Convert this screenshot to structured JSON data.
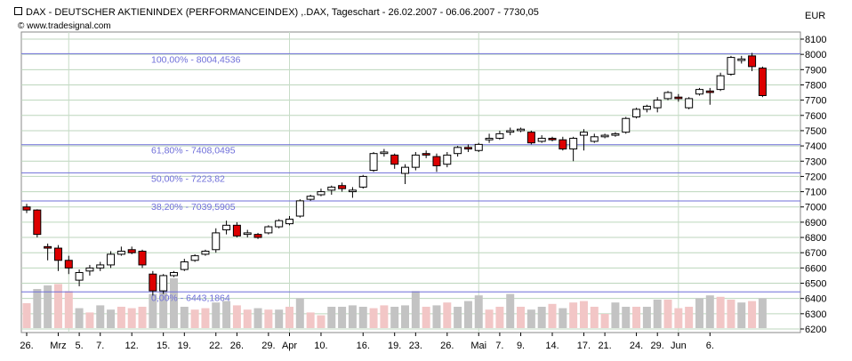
{
  "header": {
    "title": "DAX - DEUTSCHER AKTIENINDEX (PERFORMANCEINDEX) ,.DAX, Tageschart - 26.02.2007 - 06.06.2007 - 7730,05",
    "copyright": "© www.tradesignal.com",
    "currency": "EUR"
  },
  "colors": {
    "up_fill": "#ffffff",
    "down_fill": "#dd0000",
    "up_volume": "#c3c3c3",
    "down_volume": "#f2c6c6",
    "fib_line": "#6f6fd9",
    "fib_text": "#6f6fd9",
    "grid_h": "#bcd6bc",
    "grid_v": "#c8dcc8"
  },
  "chart_data": {
    "type": "candlestick",
    "title": "DAX - DEUTSCHER AKTIENINDEX (PERFORMANCEINDEX) ,.DAX, Tageschart - 26.02.2007 - 06.06.2007 - 7730,05",
    "ylim": [
      6150,
      8200
    ],
    "yticks": [
      6200,
      6300,
      6400,
      6500,
      6600,
      6700,
      6800,
      6900,
      7000,
      7100,
      7200,
      7300,
      7400,
      7500,
      7600,
      7700,
      7800,
      7900,
      8000,
      8100
    ],
    "x_labels": [
      {
        "bar": 0,
        "label": "26."
      },
      {
        "bar": 3,
        "label": "Mrz"
      },
      {
        "bar": 5,
        "label": "5."
      },
      {
        "bar": 7,
        "label": "7."
      },
      {
        "bar": 10,
        "label": "12."
      },
      {
        "bar": 13,
        "label": "15."
      },
      {
        "bar": 15,
        "label": "19."
      },
      {
        "bar": 18,
        "label": "22."
      },
      {
        "bar": 20,
        "label": "26."
      },
      {
        "bar": 23,
        "label": "29."
      },
      {
        "bar": 25,
        "label": "Apr"
      },
      {
        "bar": 28,
        "label": "10."
      },
      {
        "bar": 32,
        "label": "16."
      },
      {
        "bar": 35,
        "label": "19."
      },
      {
        "bar": 37,
        "label": "23."
      },
      {
        "bar": 40,
        "label": "26."
      },
      {
        "bar": 43,
        "label": "Mai"
      },
      {
        "bar": 45,
        "label": "7."
      },
      {
        "bar": 47,
        "label": "9."
      },
      {
        "bar": 50,
        "label": "14."
      },
      {
        "bar": 53,
        "label": "17."
      },
      {
        "bar": 55,
        "label": "21."
      },
      {
        "bar": 58,
        "label": "24."
      },
      {
        "bar": 60,
        "label": "29."
      },
      {
        "bar": 62,
        "label": "Jun"
      },
      {
        "bar": 65,
        "label": "6."
      }
    ],
    "v_grid_bars": [
      4,
      25,
      43,
      62
    ],
    "fib_levels": [
      {
        "label": "100,00% - 8004,4536",
        "value": 8004.4536
      },
      {
        "label": "61,80% - 7408,0495",
        "value": 7408.0495
      },
      {
        "label": "50,00% - 7223,82",
        "value": 7223.82
      },
      {
        "label": "38,20% - 7039,5905",
        "value": 7039.5905
      },
      {
        "label": "0,00% - 6443,1864",
        "value": 6443.1864
      }
    ],
    "ohlc": [
      [
        7000,
        7020,
        6960,
        6980
      ],
      [
        6980,
        6985,
        6800,
        6820
      ],
      [
        6740,
        6760,
        6650,
        6730
      ],
      [
        6730,
        6750,
        6580,
        6650
      ],
      [
        6650,
        6680,
        6560,
        6600
      ],
      [
        6520,
        6590,
        6480,
        6570
      ],
      [
        6580,
        6620,
        6550,
        6600
      ],
      [
        6600,
        6640,
        6580,
        6620
      ],
      [
        6620,
        6710,
        6600,
        6690
      ],
      [
        6690,
        6740,
        6680,
        6710
      ],
      [
        6720,
        6740,
        6690,
        6700
      ],
      [
        6710,
        6720,
        6600,
        6620
      ],
      [
        6560,
        6580,
        6420,
        6450
      ],
      [
        6450,
        6560,
        6430,
        6550
      ],
      [
        6550,
        6580,
        6540,
        6570
      ],
      [
        6590,
        6660,
        6580,
        6640
      ],
      [
        6650,
        6690,
        6640,
        6680
      ],
      [
        6690,
        6720,
        6680,
        6710
      ],
      [
        6720,
        6860,
        6700,
        6830
      ],
      [
        6850,
        6910,
        6820,
        6880
      ],
      [
        6880,
        6900,
        6800,
        6810
      ],
      [
        6820,
        6850,
        6800,
        6830
      ],
      [
        6820,
        6830,
        6790,
        6800
      ],
      [
        6830,
        6880,
        6820,
        6870
      ],
      [
        6870,
        6920,
        6860,
        6910
      ],
      [
        6890,
        6940,
        6880,
        6920
      ],
      [
        6940,
        7050,
        6930,
        7040
      ],
      [
        7050,
        7080,
        7040,
        7070
      ],
      [
        7080,
        7120,
        7070,
        7100
      ],
      [
        7110,
        7140,
        7080,
        7130
      ],
      [
        7140,
        7160,
        7100,
        7120
      ],
      [
        7100,
        7130,
        7060,
        7110
      ],
      [
        7130,
        7210,
        7120,
        7200
      ],
      [
        7240,
        7360,
        7230,
        7350
      ],
      [
        7350,
        7380,
        7330,
        7360
      ],
      [
        7340,
        7350,
        7250,
        7280
      ],
      [
        7220,
        7280,
        7150,
        7260
      ],
      [
        7260,
        7360,
        7240,
        7340
      ],
      [
        7350,
        7370,
        7320,
        7340
      ],
      [
        7330,
        7350,
        7230,
        7270
      ],
      [
        7280,
        7360,
        7260,
        7340
      ],
      [
        7350,
        7400,
        7330,
        7390
      ],
      [
        7390,
        7410,
        7360,
        7380
      ],
      [
        7370,
        7420,
        7360,
        7410
      ],
      [
        7440,
        7480,
        7420,
        7450
      ],
      [
        7450,
        7500,
        7440,
        7480
      ],
      [
        7490,
        7520,
        7470,
        7500
      ],
      [
        7500,
        7520,
        7490,
        7510
      ],
      [
        7490,
        7500,
        7410,
        7420
      ],
      [
        7430,
        7470,
        7420,
        7450
      ],
      [
        7450,
        7460,
        7430,
        7440
      ],
      [
        7440,
        7460,
        7370,
        7380
      ],
      [
        7380,
        7460,
        7300,
        7450
      ],
      [
        7470,
        7510,
        7370,
        7490
      ],
      [
        7430,
        7480,
        7420,
        7460
      ],
      [
        7460,
        7480,
        7450,
        7470
      ],
      [
        7470,
        7490,
        7460,
        7480
      ],
      [
        7490,
        7590,
        7480,
        7580
      ],
      [
        7590,
        7650,
        7580,
        7640
      ],
      [
        7640,
        7670,
        7620,
        7660
      ],
      [
        7650,
        7720,
        7620,
        7700
      ],
      [
        7710,
        7760,
        7700,
        7750
      ],
      [
        7720,
        7740,
        7690,
        7710
      ],
      [
        7650,
        7720,
        7640,
        7710
      ],
      [
        7740,
        7780,
        7730,
        7770
      ],
      [
        7760,
        7780,
        7670,
        7750
      ],
      [
        7770,
        7880,
        7760,
        7860
      ],
      [
        7870,
        7990,
        7860,
        7980
      ],
      [
        7960,
        7990,
        7940,
        7970
      ],
      [
        7990,
        8010,
        7890,
        7920
      ],
      [
        7910,
        7920,
        7720,
        7730
      ]
    ],
    "volume_bars": [
      [
        0,
        "down",
        0.35
      ],
      [
        1,
        "up",
        0.55
      ],
      [
        2,
        "up",
        0.6
      ],
      [
        3,
        "down",
        0.62
      ],
      [
        4,
        "down",
        0.52
      ],
      [
        5,
        "up",
        0.28
      ],
      [
        6,
        "down",
        0.22
      ],
      [
        7,
        "up",
        0.32
      ],
      [
        8,
        "up",
        0.26
      ],
      [
        9,
        "down",
        0.3
      ],
      [
        10,
        "down",
        0.28
      ],
      [
        11,
        "down",
        0.3
      ],
      [
        12,
        "up",
        0.48
      ],
      [
        13,
        "up",
        0.62
      ],
      [
        14,
        "up",
        0.7
      ],
      [
        15,
        "up",
        0.3
      ],
      [
        16,
        "down",
        0.26
      ],
      [
        17,
        "down",
        0.28
      ],
      [
        18,
        "up",
        0.36
      ],
      [
        19,
        "up",
        0.38
      ],
      [
        20,
        "down",
        0.32
      ],
      [
        21,
        "down",
        0.26
      ],
      [
        22,
        "up",
        0.28
      ],
      [
        23,
        "down",
        0.26
      ],
      [
        24,
        "up",
        0.26
      ],
      [
        25,
        "down",
        0.3
      ],
      [
        26,
        "up",
        0.42
      ],
      [
        27,
        "down",
        0.22
      ],
      [
        28,
        "down",
        0.18
      ],
      [
        29,
        "up",
        0.3
      ],
      [
        30,
        "up",
        0.3
      ],
      [
        31,
        "up",
        0.32
      ],
      [
        32,
        "up",
        0.3
      ],
      [
        33,
        "down",
        0.28
      ],
      [
        34,
        "down",
        0.32
      ],
      [
        35,
        "up",
        0.3
      ],
      [
        36,
        "up",
        0.32
      ],
      [
        37,
        "up",
        0.52
      ],
      [
        38,
        "down",
        0.3
      ],
      [
        39,
        "up",
        0.32
      ],
      [
        40,
        "down",
        0.36
      ],
      [
        41,
        "up",
        0.3
      ],
      [
        42,
        "up",
        0.38
      ],
      [
        43,
        "up",
        0.46
      ],
      [
        44,
        "down",
        0.26
      ],
      [
        45,
        "down",
        0.3
      ],
      [
        46,
        "up",
        0.48
      ],
      [
        47,
        "down",
        0.3
      ],
      [
        48,
        "up",
        0.26
      ],
      [
        49,
        "up",
        0.3
      ],
      [
        50,
        "down",
        0.34
      ],
      [
        51,
        "up",
        0.28
      ],
      [
        52,
        "down",
        0.36
      ],
      [
        53,
        "down",
        0.38
      ],
      [
        54,
        "down",
        0.3
      ],
      [
        55,
        "down",
        0.2
      ],
      [
        56,
        "up",
        0.36
      ],
      [
        57,
        "up",
        0.3
      ],
      [
        58,
        "down",
        0.3
      ],
      [
        59,
        "up",
        0.3
      ],
      [
        60,
        "up",
        0.4
      ],
      [
        61,
        "down",
        0.4
      ],
      [
        62,
        "down",
        0.28
      ],
      [
        63,
        "down",
        0.3
      ],
      [
        64,
        "up",
        0.42
      ],
      [
        65,
        "up",
        0.46
      ],
      [
        66,
        "down",
        0.44
      ],
      [
        67,
        "down",
        0.4
      ],
      [
        68,
        "up",
        0.36
      ],
      [
        69,
        "down",
        0.38
      ],
      [
        70,
        "up",
        0.42
      ]
    ]
  }
}
